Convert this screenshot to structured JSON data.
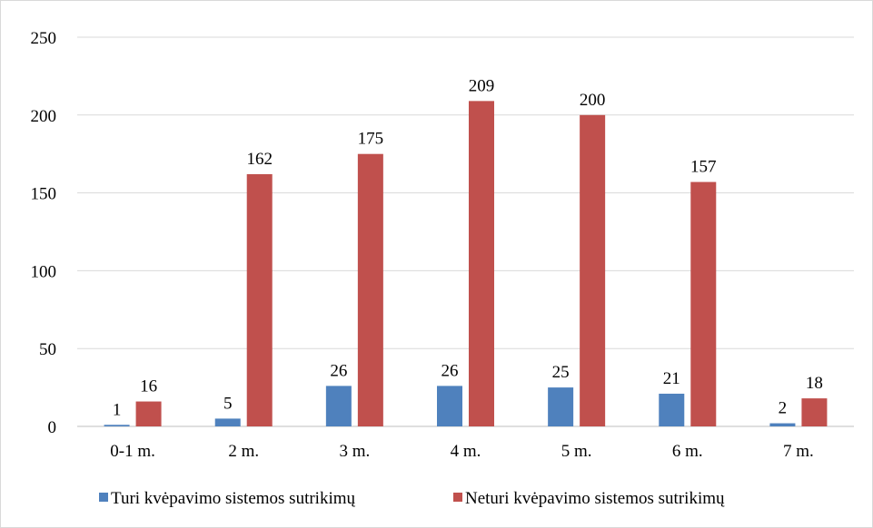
{
  "chart_data": {
    "type": "bar",
    "categories": [
      "0-1 m.",
      "2 m.",
      "3 m.",
      "4 m.",
      "5 m.",
      "6 m.",
      "7 m."
    ],
    "series": [
      {
        "name": "Turi kvėpavimo sistemos sutrikimų",
        "color": "#4f81bd",
        "values": [
          1,
          5,
          26,
          26,
          25,
          21,
          2
        ]
      },
      {
        "name": "Neturi kvėpavimo sistemos sutrikimų",
        "color": "#c0504d",
        "values": [
          16,
          162,
          175,
          209,
          200,
          157,
          18
        ]
      }
    ],
    "ylim": [
      0,
      250
    ],
    "yticks": [
      0,
      50,
      100,
      150,
      200,
      250
    ],
    "grid": true,
    "data_labels": true,
    "legend_position": "bottom"
  }
}
